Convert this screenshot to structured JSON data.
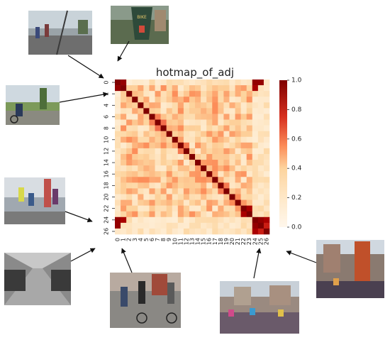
{
  "chart_data": {
    "type": "heatmap",
    "title": "hotmap_of_adj",
    "rows": 27,
    "cols": 27,
    "x_tick_labels": [
      "0",
      "1",
      "2",
      "3",
      "4",
      "5",
      "6",
      "7",
      "8",
      "9",
      "10",
      "11",
      "12",
      "13",
      "14",
      "15",
      "16",
      "17",
      "18",
      "19",
      "20",
      "21",
      "22",
      "23",
      "24",
      "25",
      "26"
    ],
    "y_tick_labels": [
      "0",
      "2",
      "4",
      "6",
      "8",
      "10",
      "12",
      "14",
      "16",
      "18",
      "20",
      "22",
      "24",
      "26"
    ],
    "colorbar": {
      "min": 0.0,
      "max": 1.0,
      "ticks": [
        "0.0",
        "0.2",
        "0.4",
        "0.6",
        "0.8",
        "1.0"
      ],
      "colormap": "OrRd"
    },
    "diagonal_value": 1.0,
    "strong_pairs": [
      [
        0,
        1,
        0.95
      ],
      [
        22,
        23,
        0.9
      ],
      [
        24,
        25,
        0.95
      ],
      [
        24,
        26,
        0.9
      ],
      [
        0,
        24,
        0.95
      ],
      [
        0,
        25,
        0.95
      ],
      [
        1,
        24,
        0.9
      ],
      [
        25,
        26,
        0.8
      ]
    ],
    "background_range": [
      0.1,
      0.5
    ]
  },
  "thumbnails": [
    {
      "name": "bridge-cyclists-photo",
      "theme": "bridge"
    },
    {
      "name": "bike-sign-photo",
      "theme": "sign"
    },
    {
      "name": "park-cyclist-photo",
      "theme": "park"
    },
    {
      "name": "city-cyclists-photo",
      "theme": "city"
    },
    {
      "name": "bike-parking-photo",
      "theme": "parking"
    },
    {
      "name": "street-cyclists-photo",
      "theme": "street"
    },
    {
      "name": "crowd-square-photo",
      "theme": "crowd"
    },
    {
      "name": "festival-street-photo",
      "theme": "festival"
    }
  ]
}
